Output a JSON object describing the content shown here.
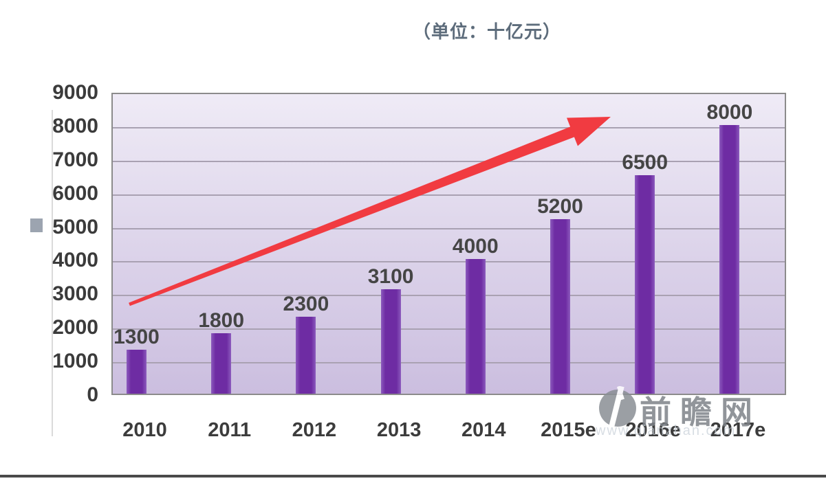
{
  "page": {
    "unit_title": "（单位：十亿元）"
  },
  "chart_data": {
    "type": "bar",
    "categories": [
      "2010",
      "2011",
      "2012",
      "2013",
      "2014",
      "2015e",
      "2016e",
      "2017e"
    ],
    "values": [
      1300,
      1800,
      2300,
      3100,
      4000,
      5200,
      6500,
      8000
    ],
    "title": "（单位：十亿元）",
    "xlabel": "",
    "ylabel": "",
    "ylim": [
      0,
      9000
    ],
    "y_ticks": [
      9000,
      8000,
      7000,
      6000,
      5000,
      4000,
      3000,
      2000,
      1000,
      0
    ],
    "grid": true,
    "legend": "none",
    "annotation": "red upward trend arrow across bars",
    "bar_color": "#6e2ca3",
    "bar_edge_color": "#8c5bbd",
    "plot_bg_top": "#efebf6",
    "plot_bg_bottom": "#cbbedf",
    "gridline_color": "#a9a1b2",
    "border_color": "#8b8b8b"
  },
  "colors": {
    "arrow": "#f13b41",
    "title_text": "#5d6c7b",
    "tick_text": "#3b3b3b",
    "watermark_gray": "#8a8f95"
  },
  "watermark": {
    "logo_icon": "qianzhan-logo",
    "title": "前瞻网",
    "subtitle": "www.qianzhan.com"
  }
}
